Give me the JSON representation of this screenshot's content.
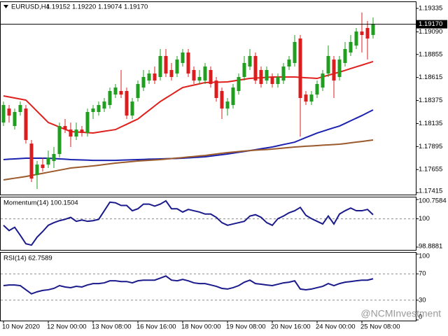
{
  "chart_data": [
    {
      "type": "candlestick",
      "title": "EURUSD,H4",
      "subtitle": "1.19152 1.19220 1.19074 1.19170",
      "categories": [
        "10 Nov 2020",
        null,
        null,
        null,
        null,
        null,
        null,
        null,
        "12 Nov 00:00",
        null,
        null,
        null,
        null,
        null,
        null,
        null,
        "13 Nov 08:00",
        null,
        null,
        null,
        null,
        null,
        null,
        null,
        "16 Nov 16:00",
        null,
        null,
        null,
        null,
        null,
        null,
        null,
        "18 Nov 00:00",
        null,
        null,
        null,
        null,
        null,
        null,
        null,
        "19 Nov 08:00",
        null,
        null,
        null,
        null,
        null,
        null,
        null,
        "20 Nov 16:00",
        null,
        null,
        null,
        null,
        null,
        null,
        null,
        "24 Nov 00:00",
        null,
        null,
        null,
        null,
        null,
        null,
        null,
        "25 Nov 08:00",
        null,
        null
      ],
      "open": [
        1.18145,
        1.18291,
        1.18109,
        1.18255,
        1.18291,
        1.17926,
        1.17598,
        1.17707,
        1.17707,
        1.17744,
        1.17817,
        1.18109,
        1.18072,
        1.17999,
        1.18072,
        1.18036,
        1.18255,
        1.18255,
        1.18291,
        1.18328,
        1.18437,
        1.18474,
        1.18474,
        1.18218,
        1.18401,
        1.1851,
        1.18583,
        1.18656,
        1.1862,
        1.18839,
        1.18693,
        1.18656,
        1.18766,
        1.18875,
        1.18693,
        1.18583,
        1.18583,
        1.18693,
        1.18583,
        1.18474,
        1.18291,
        1.18328,
        1.18474,
        1.1862,
        1.18729,
        1.18839,
        1.18693,
        1.18583,
        1.1862,
        1.18547,
        1.18583,
        1.18729,
        1.18766,
        1.19021,
        1.18437,
        1.18364,
        1.18437,
        1.1851,
        1.18656,
        1.18802,
        1.1862,
        1.18766,
        1.18875,
        1.18948,
        1.19094,
        1.19131,
        1.19058
      ],
      "high": [
        1.18364,
        1.18328,
        1.18291,
        1.18364,
        1.18328,
        1.17963,
        1.17744,
        1.1778,
        1.17853,
        1.1789,
        1.18145,
        1.18182,
        1.18145,
        1.18145,
        1.18109,
        1.18291,
        1.18328,
        1.18364,
        1.18401,
        1.1851,
        1.18547,
        1.18693,
        1.1851,
        1.18401,
        1.18583,
        1.18693,
        1.18693,
        1.18729,
        1.18912,
        1.18912,
        1.18766,
        1.18839,
        1.18912,
        1.18912,
        1.18729,
        1.18693,
        1.18766,
        1.18729,
        1.1862,
        1.1851,
        1.18401,
        1.18547,
        1.18656,
        1.18839,
        1.18912,
        1.18875,
        1.18729,
        1.18729,
        1.18656,
        1.18656,
        1.18766,
        1.18839,
        1.19058,
        1.19058,
        1.18474,
        1.18474,
        1.18583,
        1.18693,
        1.18948,
        1.18839,
        1.18839,
        1.18985,
        1.19058,
        1.19131,
        1.19292,
        1.19204,
        1.1924
      ],
      "low": [
        1.18109,
        1.18145,
        1.18072,
        1.18218,
        1.17926,
        1.17525,
        1.17452,
        1.17634,
        1.17671,
        1.17671,
        1.1778,
        1.18036,
        1.1789,
        1.17963,
        1.17999,
        1.17999,
        1.18182,
        1.18218,
        1.18255,
        1.18291,
        1.18401,
        1.18401,
        1.18182,
        1.18182,
        1.18364,
        1.18474,
        1.18547,
        1.18547,
        1.18583,
        1.1862,
        1.18583,
        1.1862,
        1.18729,
        1.1862,
        1.18547,
        1.18547,
        1.18547,
        1.1851,
        1.18364,
        1.18182,
        1.18218,
        1.18291,
        1.18437,
        1.18583,
        1.18693,
        1.18547,
        1.1851,
        1.18547,
        1.1851,
        1.1851,
        1.18547,
        1.18693,
        1.18729,
        1.17999,
        1.18328,
        1.18328,
        1.18401,
        1.18474,
        1.1862,
        1.18401,
        1.18583,
        1.18729,
        1.18839,
        1.18912,
        1.18875,
        1.18802,
        1.19021
      ],
      "close": [
        1.18328,
        1.18218,
        1.18255,
        1.18328,
        1.17963,
        1.17561,
        1.17707,
        1.17671,
        1.1778,
        1.17817,
        1.18109,
        1.18072,
        1.17999,
        1.18072,
        1.18036,
        1.18255,
        1.18291,
        1.18328,
        1.18364,
        1.18474,
        1.1851,
        1.18437,
        1.18218,
        1.18364,
        1.18547,
        1.1862,
        1.18656,
        1.18583,
        1.18839,
        1.18656,
        1.1862,
        1.18802,
        1.18875,
        1.18656,
        1.18583,
        1.1862,
        1.18729,
        1.18547,
        1.18401,
        1.18291,
        1.18364,
        1.1851,
        1.1862,
        1.18766,
        1.18839,
        1.18583,
        1.18547,
        1.18693,
        1.18547,
        1.1862,
        1.18729,
        1.18802,
        1.18985,
        1.18401,
        1.18364,
        1.18437,
        1.18547,
        1.18656,
        1.18839,
        1.18583,
        1.18802,
        1.18912,
        1.18985,
        1.19094,
        1.19058,
        1.19021,
        1.1917
      ],
      "up_color": "#1f9e1f",
      "down_color": "#dc1d1d",
      "lines": [
        {
          "color": "#e0201c",
          "values": [
            1.18423,
            1.18412,
            1.18401,
            1.1839,
            1.18379,
            1.18321,
            1.18262,
            1.18204,
            1.18145,
            1.18122,
            1.18098,
            1.18075,
            1.18051,
            1.18047,
            1.18044,
            1.1804,
            1.18036,
            1.18045,
            1.18054,
            1.18063,
            1.18072,
            1.181,
            1.18127,
            1.18155,
            1.18182,
            1.18228,
            1.18273,
            1.18319,
            1.18364,
            1.18401,
            1.18437,
            1.18474,
            1.1851,
            1.18523,
            1.18536,
            1.18549,
            1.18562,
            1.18564,
            1.18565,
            1.18567,
            1.18569,
            1.18578,
            1.18587,
            1.18596,
            1.18605,
            1.18609,
            1.18612,
            1.18616,
            1.1862,
            1.1862,
            1.1862,
            1.1862,
            1.1862,
            1.18616,
            1.18612,
            1.18609,
            1.18605,
            1.18622,
            1.18638,
            1.18655,
            1.18671,
            1.18689,
            1.18708,
            1.18726,
            1.18744,
            1.18763,
            1.18781
          ]
        },
        {
          "color": "#1c22b0",
          "values": [
            1.17759,
            1.17763,
            1.17766,
            1.1777,
            1.17773,
            1.17773,
            1.17773,
            1.17773,
            1.17773,
            1.1777,
            1.17766,
            1.17763,
            1.17759,
            1.17757,
            1.17755,
            1.17753,
            1.17751,
            1.17751,
            1.17751,
            1.17751,
            1.17751,
            1.17753,
            1.17755,
            1.17757,
            1.17759,
            1.17761,
            1.17763,
            1.17764,
            1.17766,
            1.17768,
            1.1777,
            1.17771,
            1.17773,
            1.17777,
            1.17781,
            1.17784,
            1.17788,
            1.17795,
            1.17803,
            1.1781,
            1.17817,
            1.17826,
            1.17835,
            1.17844,
            1.17853,
            1.17862,
            1.17872,
            1.17881,
            1.1789,
            1.17903,
            1.17916,
            1.17928,
            1.17941,
            1.17965,
            1.17989,
            1.18012,
            1.18036,
            1.18054,
            1.18073,
            1.18091,
            1.18109,
            1.18136,
            1.18164,
            1.18191,
            1.18218,
            1.18248,
            1.18277
          ]
        },
        {
          "color": "#9a5a2c",
          "values": [
            1.17547,
            1.17556,
            1.17565,
            1.17574,
            1.17583,
            1.17594,
            1.17605,
            1.17616,
            1.17627,
            1.17638,
            1.17649,
            1.1766,
            1.17671,
            1.17677,
            1.17682,
            1.17688,
            1.17693,
            1.177,
            1.17708,
            1.17715,
            1.17722,
            1.17728,
            1.17733,
            1.17739,
            1.17744,
            1.17748,
            1.17752,
            1.17755,
            1.17759,
            1.17764,
            1.1777,
            1.17775,
            1.1778,
            1.17786,
            1.17791,
            1.17797,
            1.17802,
            1.1781,
            1.17817,
            1.17825,
            1.17832,
            1.17837,
            1.17843,
            1.17848,
            1.17853,
            1.17857,
            1.17861,
            1.17864,
            1.17868,
            1.17874,
            1.17879,
            1.17885,
            1.1789,
            1.17894,
            1.17898,
            1.17901,
            1.17905,
            1.17909,
            1.17912,
            1.17916,
            1.17919,
            1.17926,
            1.17934,
            1.17941,
            1.17948,
            1.17956,
            1.17963
          ]
        }
      ],
      "current_price": {
        "value": 1.1917,
        "label": "1.19170"
      },
      "ylim": [
        1.17394,
        1.19408
      ],
      "yticks": [
        1.19335,
        {
          "value": 1.1909,
          "label": "1.19090"
        },
        1.18855,
        1.18615,
        1.18375,
        1.18135,
        1.17895,
        1.17655,
        1.17415
      ],
      "grid": false
    },
    {
      "type": "line",
      "title": "Momentum(14) 100.1504",
      "color": "#1a1a8c",
      "values": [
        99.745,
        99.538,
        99.667,
        99.35,
        99.018,
        98.966,
        99.278,
        99.5,
        99.745,
        99.849,
        99.927,
        99.979,
        100.057,
        99.901,
        99.953,
        99.901,
        99.927,
        99.979,
        100.317,
        100.654,
        100.628,
        100.525,
        100.525,
        100.317,
        100.395,
        100.577,
        100.577,
        100.499,
        100.577,
        100.706,
        100.395,
        100.395,
        100.265,
        100.369,
        100.317,
        100.265,
        100.187,
        100.187,
        100.057,
        99.849,
        99.745,
        99.797,
        99.849,
        99.901,
        100.109,
        100.161,
        100.057,
        99.849,
        99.745,
        100.005,
        100.109,
        100.239,
        100.317,
        100.447,
        100.135,
        100.005,
        99.901,
        99.797,
        100.109,
        99.797,
        100.187,
        100.317,
        100.421,
        100.317,
        100.317,
        100.369,
        100.161
      ],
      "ylim": [
        98.8881,
        100.7584
      ],
      "yticks": [
        100.7584,
        100,
        98.8881
      ],
      "grid": true
    },
    {
      "type": "line",
      "title": "RSI(14) 62.7589",
      "color": "#1a1a8c",
      "values": [
        52.1,
        53.1,
        53.1,
        52.1,
        45.8,
        39.6,
        42.7,
        44.8,
        45.8,
        47.9,
        52.1,
        50.0,
        49.0,
        51.0,
        50.0,
        53.1,
        55.2,
        55.2,
        56.3,
        59.4,
        59.4,
        58.3,
        58.3,
        56.3,
        59.4,
        60.4,
        60.4,
        60.4,
        63.5,
        66.7,
        60.4,
        59.4,
        61.5,
        59.4,
        56.3,
        55.2,
        55.2,
        53.1,
        51.0,
        47.9,
        46.9,
        49.0,
        52.1,
        57.3,
        60.4,
        55.2,
        54.2,
        53.1,
        52.1,
        54.2,
        56.3,
        57.3,
        59.4,
        46.9,
        45.8,
        46.9,
        49.0,
        51.0,
        55.2,
        52.1,
        55.2,
        57.3,
        58.3,
        59.4,
        60.4,
        60.4,
        62.5
      ],
      "ylim": [
        0,
        100
      ],
      "yticks": [
        100,
        70,
        30,
        0
      ],
      "grid": true
    }
  ],
  "watermark": "@NCMInvestment"
}
